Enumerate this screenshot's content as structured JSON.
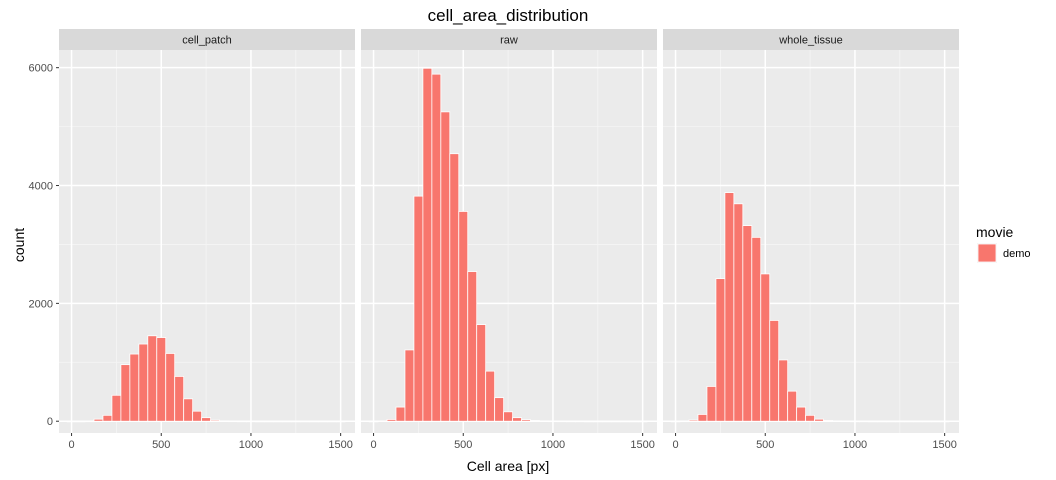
{
  "chart_data": {
    "type": "bar",
    "title": "cell_area_distribution",
    "xlabel": "Cell area [px]",
    "ylabel": "count",
    "xlim": [
      -70,
      1580
    ],
    "ylim": [
      -200,
      6300
    ],
    "x_ticks": [
      0,
      500,
      1000,
      1500
    ],
    "x_tick_labels": [
      "0",
      "500",
      "1000",
      "1500"
    ],
    "y_ticks": [
      0,
      2000,
      4000,
      6000
    ],
    "y_tick_labels": [
      "0",
      "2000",
      "4000",
      "6000"
    ],
    "bin_width": 50,
    "grid": true,
    "bar_color": "#F8766D",
    "bar_outline": "#ffffff",
    "legend": {
      "title": "movie",
      "position": "right",
      "entries": [
        {
          "label": "demo",
          "color": "#F8766D"
        }
      ]
    },
    "facets": [
      {
        "label": "cell_patch",
        "bins": [
          {
            "x": 0,
            "count": 0
          },
          {
            "x": 50,
            "count": 0
          },
          {
            "x": 100,
            "count": 2
          },
          {
            "x": 150,
            "count": 35
          },
          {
            "x": 200,
            "count": 100
          },
          {
            "x": 250,
            "count": 440
          },
          {
            "x": 300,
            "count": 960
          },
          {
            "x": 350,
            "count": 1140
          },
          {
            "x": 400,
            "count": 1310
          },
          {
            "x": 450,
            "count": 1450
          },
          {
            "x": 500,
            "count": 1420
          },
          {
            "x": 550,
            "count": 1150
          },
          {
            "x": 600,
            "count": 760
          },
          {
            "x": 650,
            "count": 380
          },
          {
            "x": 700,
            "count": 170
          },
          {
            "x": 750,
            "count": 60
          },
          {
            "x": 800,
            "count": 18
          },
          {
            "x": 850,
            "count": 6
          },
          {
            "x": 900,
            "count": 3
          },
          {
            "x": 950,
            "count": 1
          },
          {
            "x": 1000,
            "count": 1
          },
          {
            "x": 1050,
            "count": 0
          },
          {
            "x": 1100,
            "count": 0
          },
          {
            "x": 1150,
            "count": 0
          },
          {
            "x": 1200,
            "count": 0
          },
          {
            "x": 1250,
            "count": 0
          },
          {
            "x": 1300,
            "count": 0
          },
          {
            "x": 1350,
            "count": 0
          },
          {
            "x": 1400,
            "count": 0
          },
          {
            "x": 1450,
            "count": 0
          },
          {
            "x": 1500,
            "count": 0
          }
        ]
      },
      {
        "label": "raw",
        "bins": [
          {
            "x": 0,
            "count": 0
          },
          {
            "x": 50,
            "count": 5
          },
          {
            "x": 100,
            "count": 30
          },
          {
            "x": 150,
            "count": 240
          },
          {
            "x": 200,
            "count": 1210
          },
          {
            "x": 250,
            "count": 3820
          },
          {
            "x": 300,
            "count": 5990
          },
          {
            "x": 350,
            "count": 5890
          },
          {
            "x": 400,
            "count": 5250
          },
          {
            "x": 450,
            "count": 4540
          },
          {
            "x": 500,
            "count": 3560
          },
          {
            "x": 550,
            "count": 2540
          },
          {
            "x": 600,
            "count": 1640
          },
          {
            "x": 650,
            "count": 850
          },
          {
            "x": 700,
            "count": 400
          },
          {
            "x": 750,
            "count": 160
          },
          {
            "x": 800,
            "count": 60
          },
          {
            "x": 850,
            "count": 25
          },
          {
            "x": 900,
            "count": 12
          },
          {
            "x": 950,
            "count": 6
          },
          {
            "x": 1000,
            "count": 3
          },
          {
            "x": 1050,
            "count": 2
          },
          {
            "x": 1100,
            "count": 1
          },
          {
            "x": 1150,
            "count": 1
          },
          {
            "x": 1200,
            "count": 0
          },
          {
            "x": 1250,
            "count": 0
          },
          {
            "x": 1300,
            "count": 0
          },
          {
            "x": 1350,
            "count": 0
          },
          {
            "x": 1400,
            "count": 0
          },
          {
            "x": 1450,
            "count": 0
          },
          {
            "x": 1500,
            "count": 0
          }
        ]
      },
      {
        "label": "whole_tissue",
        "bins": [
          {
            "x": 0,
            "count": 0
          },
          {
            "x": 50,
            "count": 3
          },
          {
            "x": 100,
            "count": 20
          },
          {
            "x": 150,
            "count": 115
          },
          {
            "x": 200,
            "count": 590
          },
          {
            "x": 250,
            "count": 2420
          },
          {
            "x": 300,
            "count": 3880
          },
          {
            "x": 350,
            "count": 3690
          },
          {
            "x": 400,
            "count": 3320
          },
          {
            "x": 450,
            "count": 3120
          },
          {
            "x": 500,
            "count": 2500
          },
          {
            "x": 550,
            "count": 1710
          },
          {
            "x": 600,
            "count": 1040
          },
          {
            "x": 650,
            "count": 510
          },
          {
            "x": 700,
            "count": 240
          },
          {
            "x": 750,
            "count": 100
          },
          {
            "x": 800,
            "count": 35
          },
          {
            "x": 850,
            "count": 14
          },
          {
            "x": 900,
            "count": 6
          },
          {
            "x": 950,
            "count": 3
          },
          {
            "x": 1000,
            "count": 1
          },
          {
            "x": 1050,
            "count": 1
          },
          {
            "x": 1100,
            "count": 0
          },
          {
            "x": 1150,
            "count": 0
          },
          {
            "x": 1200,
            "count": 0
          },
          {
            "x": 1250,
            "count": 0
          },
          {
            "x": 1300,
            "count": 0
          },
          {
            "x": 1350,
            "count": 0
          },
          {
            "x": 1400,
            "count": 0
          },
          {
            "x": 1450,
            "count": 0
          },
          {
            "x": 1500,
            "count": 0
          }
        ]
      }
    ]
  }
}
